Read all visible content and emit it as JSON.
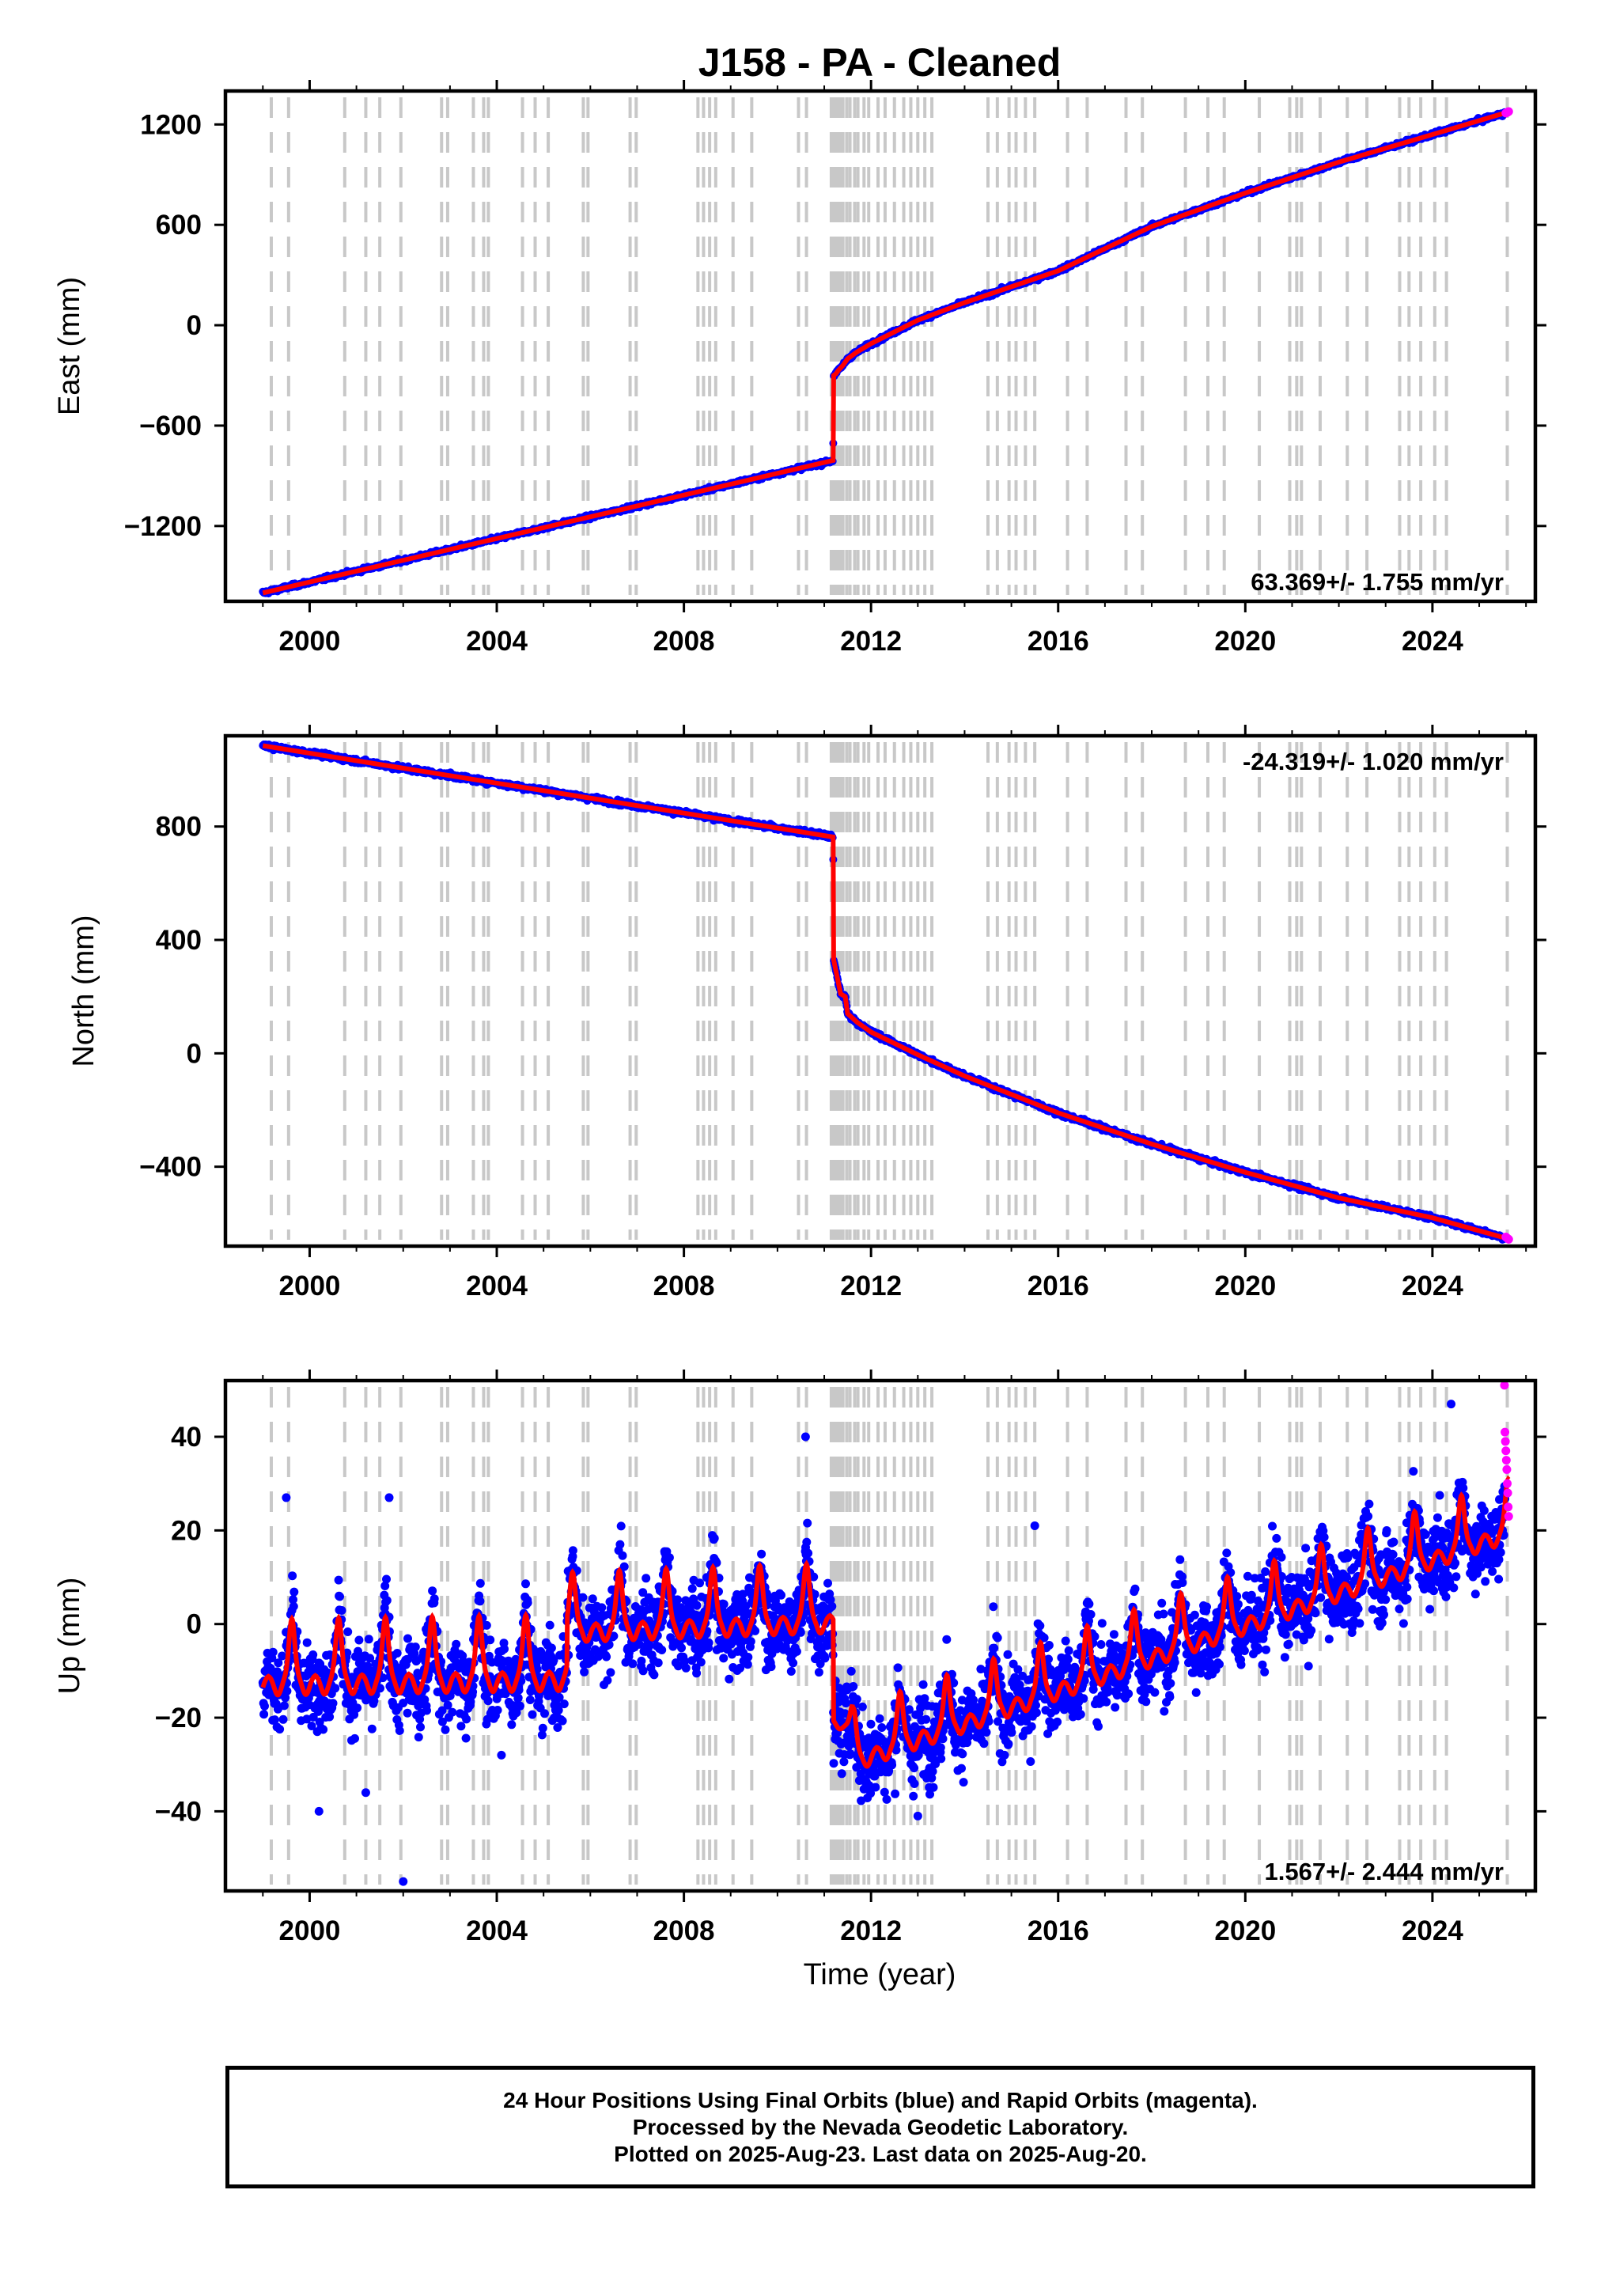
{
  "title": "J158  - PA - Cleaned",
  "xlabel": "Time (year)",
  "footer": {
    "line1": "24 Hour Positions Using Final Orbits (blue) and Rapid Orbits (magenta).",
    "line2": "Processed by the Nevada Geodetic Laboratory.",
    "line3": "Plotted on 2025-Aug-23. Last data on 2025-Aug-20."
  },
  "colors": {
    "final": "#0000ff",
    "rapid": "#ff00ff",
    "model": "#ff0000",
    "events": "#c8c8c8",
    "frame": "#000000"
  },
  "chart_data": [
    {
      "type": "scatter",
      "name": "east",
      "ylabel": "East (mm)",
      "xlim": [
        1998.2,
        2026.2
      ],
      "ylim": [
        -1650,
        1400
      ],
      "xticks": [
        2000,
        2004,
        2008,
        2012,
        2016,
        2020,
        2024
      ],
      "yticks": [
        -1200,
        -600,
        0,
        600,
        1200
      ],
      "ytick_labels": [
        "−1200",
        "−600",
        "0",
        "600",
        "1200"
      ],
      "rate_label": "63.369+/- 1.755 mm/yr",
      "rate_position": "bottom-right",
      "first_epoch": 1999.0,
      "last_epoch": 2025.63,
      "model": [
        [
          1999.0,
          -1600
        ],
        [
          2011.19,
          -808
        ],
        [
          2011.2,
          -300
        ],
        [
          2011.25,
          -290
        ],
        [
          2011.3,
          -270
        ],
        [
          2011.4,
          -240
        ],
        [
          2011.5,
          -200
        ],
        [
          2011.7,
          -160
        ],
        [
          2012.0,
          -110
        ],
        [
          2013.0,
          30
        ],
        [
          2014.0,
          135
        ],
        [
          2016.0,
          325
        ],
        [
          2018.0,
          590
        ],
        [
          2020.0,
          790
        ],
        [
          2022.0,
          975
        ],
        [
          2024.0,
          1140
        ],
        [
          2025.63,
          1275
        ]
      ],
      "rapid_points": [
        [
          2025.57,
          1268
        ],
        [
          2025.6,
          1272
        ],
        [
          2025.63,
          1277
        ]
      ],
      "scatter_mm": 8
    },
    {
      "type": "scatter",
      "name": "north",
      "ylabel": "North (mm)",
      "xlim": [
        1998.2,
        2026.2
      ],
      "ylim": [
        -680,
        1120
      ],
      "xticks": [
        2000,
        2004,
        2008,
        2012,
        2016,
        2020,
        2024
      ],
      "yticks": [
        -400,
        0,
        400,
        800
      ],
      "ytick_labels": [
        "−400",
        "0",
        "400",
        "800"
      ],
      "rate_label": "-24.319+/- 1.020 mm/yr",
      "rate_position": "top-right",
      "first_epoch": 1999.0,
      "last_epoch": 2025.63,
      "model": [
        [
          1999.0,
          1085
        ],
        [
          2011.19,
          763
        ],
        [
          2011.2,
          330
        ],
        [
          2011.3,
          250
        ],
        [
          2011.35,
          210
        ],
        [
          2011.45,
          200
        ],
        [
          2011.5,
          140
        ],
        [
          2011.7,
          110
        ],
        [
          2012.0,
          75
        ],
        [
          2013.0,
          -5
        ],
        [
          2014.0,
          -80
        ],
        [
          2016.0,
          -210
        ],
        [
          2018.0,
          -320
        ],
        [
          2020.0,
          -420
        ],
        [
          2022.0,
          -510
        ],
        [
          2024.0,
          -580
        ],
        [
          2025.63,
          -655
        ]
      ],
      "rapid_points": [
        [
          2025.57,
          -648
        ],
        [
          2025.6,
          -652
        ],
        [
          2025.63,
          -656
        ]
      ],
      "scatter_mm": 6
    },
    {
      "type": "scatter",
      "name": "up",
      "ylabel": "Up (mm)",
      "xlim": [
        1998.2,
        2026.2
      ],
      "ylim": [
        -57,
        52
      ],
      "xticks": [
        2000,
        2004,
        2008,
        2012,
        2016,
        2020,
        2024
      ],
      "yticks": [
        -40,
        -20,
        0,
        20,
        40
      ],
      "ytick_labels": [
        "−40",
        "−20",
        "0",
        "20",
        "40"
      ],
      "rate_label": "1.567+/- 2.444 mm/yr",
      "rate_position": "bottom-right",
      "first_epoch": 1999.0,
      "last_epoch": 2025.63,
      "model_segments": [
        {
          "start": 1999.0,
          "end": 2005.5,
          "base0": -11,
          "base1": -10,
          "amp": 12
        },
        {
          "start": 2005.5,
          "end": 2011.19,
          "base0": 0,
          "base1": 2,
          "amp": 11
        },
        {
          "start": 2011.19,
          "end": 2011.6,
          "base0": -20,
          "base1": -22,
          "amp": 5
        },
        {
          "start": 2011.6,
          "end": 2025.63,
          "base0": -28,
          "base1": 21,
          "amp": 10
        }
      ],
      "rapid_points": [
        [
          2025.54,
          51
        ],
        [
          2025.55,
          41
        ],
        [
          2025.56,
          39
        ],
        [
          2025.57,
          37
        ],
        [
          2025.58,
          35
        ],
        [
          2025.59,
          33
        ],
        [
          2025.6,
          30
        ],
        [
          2025.61,
          28
        ],
        [
          2025.62,
          25
        ],
        [
          2025.63,
          23
        ]
      ],
      "outliers": [
        [
          2002.0,
          -55
        ],
        [
          2000.2,
          -40
        ],
        [
          2001.2,
          -36
        ],
        [
          2010.6,
          40
        ],
        [
          2024.4,
          47
        ],
        [
          2013.0,
          -41
        ],
        [
          2004.1,
          -28
        ],
        [
          2015.5,
          21
        ],
        [
          2001.7,
          27
        ],
        [
          1999.5,
          27
        ]
      ],
      "scatter_mm": 6
    }
  ],
  "event_lines": [
    1999.18,
    1999.55,
    2000.75,
    2001.2,
    2001.5,
    2001.95,
    2002.82,
    2002.95,
    2003.5,
    2003.72,
    2003.82,
    2004.55,
    2004.82,
    2005.1,
    2005.85,
    2005.95,
    2006.85,
    2006.98,
    2008.3,
    2008.42,
    2008.55,
    2008.68,
    2009.05,
    2009.45,
    2010.45,
    2010.62,
    2011.15,
    2011.2,
    2011.25,
    2011.3,
    2011.35,
    2011.4,
    2011.48,
    2011.55,
    2011.65,
    2011.72,
    2011.85,
    2011.95,
    2012.15,
    2012.3,
    2012.5,
    2012.7,
    2012.85,
    2013.0,
    2013.15,
    2013.3,
    2014.5,
    2014.7,
    2014.95,
    2015.1,
    2015.3,
    2015.5,
    2016.2,
    2016.62,
    2017.45,
    2017.8,
    2018.72,
    2019.2,
    2019.55,
    2020.3,
    2020.95,
    2021.1,
    2021.2,
    2021.6,
    2022.18,
    2022.6,
    2023.3,
    2023.5,
    2023.75,
    2024.05,
    2024.3,
    2025.6
  ]
}
